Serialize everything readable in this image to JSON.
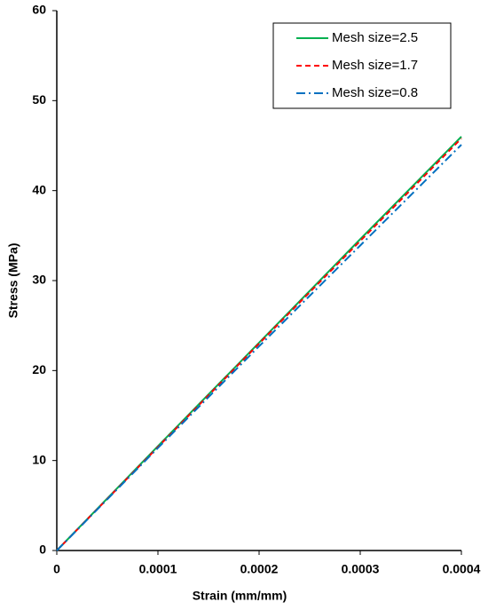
{
  "chart_data": {
    "type": "line",
    "x_label": "Strain (mm/mm)",
    "y_label": "Stress (MPa)",
    "x": [
      0,
      0.0001,
      0.0002,
      0.0003,
      0.0004
    ],
    "series": [
      {
        "name": "Mesh size=2.5",
        "color": "#00b050",
        "dash": "solid",
        "values": [
          0,
          11.6,
          23.1,
          34.6,
          46.0
        ]
      },
      {
        "name": "Mesh size=1.7",
        "color": "#ff0000",
        "dash": "dashed",
        "values": [
          0,
          11.5,
          23.0,
          34.4,
          45.8
        ]
      },
      {
        "name": "Mesh size=0.8",
        "color": "#0070c0",
        "dash": "dashdot",
        "values": [
          0,
          11.4,
          22.7,
          33.9,
          45.1
        ]
      }
    ],
    "xlim": [
      0,
      0.0004
    ],
    "xticks": [
      0,
      0.0001,
      0.0002,
      0.0003,
      0.0004
    ],
    "ylim": [
      0,
      60
    ],
    "yticks": [
      0,
      10,
      20,
      30,
      40,
      50,
      60
    ],
    "grid": false,
    "legend": "upper right"
  }
}
